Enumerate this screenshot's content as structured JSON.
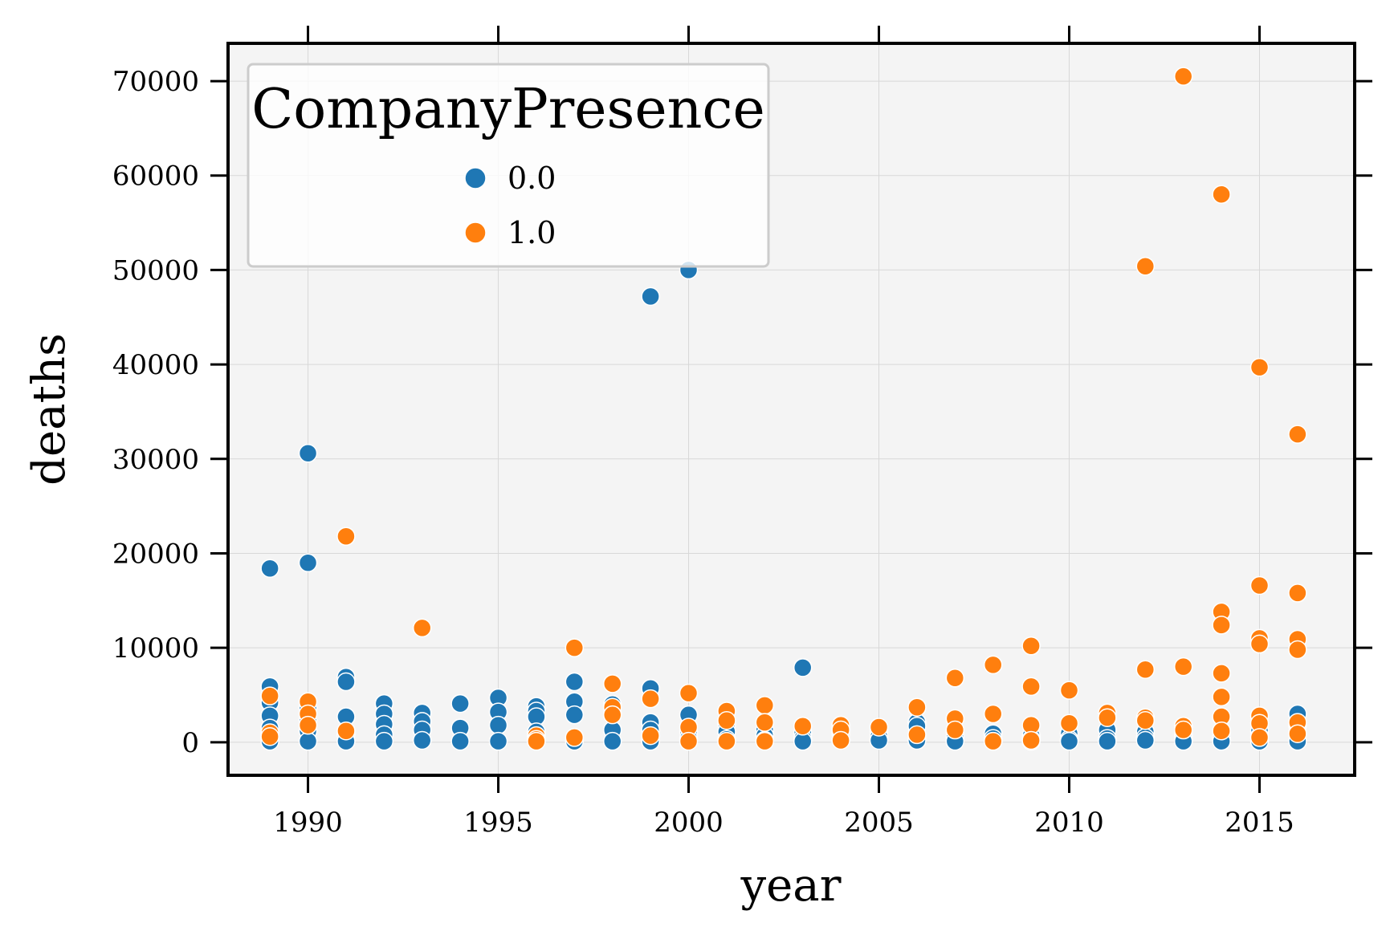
{
  "chart_data": {
    "type": "scatter",
    "title": "",
    "xlabel": "year",
    "ylabel": "deaths",
    "xlim": [
      1987.9,
      2017.5
    ],
    "ylim": [
      -3500,
      74000
    ],
    "xticks": [
      1990,
      1995,
      2000,
      2005,
      2010,
      2015
    ],
    "xtick_labels": [
      "1990",
      "1995",
      "2000",
      "2005",
      "2010",
      "2015"
    ],
    "yticks": [
      0,
      10000,
      20000,
      30000,
      40000,
      50000,
      60000,
      70000
    ],
    "ytick_labels": [
      "0",
      "10000",
      "20000",
      "30000",
      "40000",
      "50000",
      "60000",
      "70000"
    ],
    "grid": true,
    "legend": {
      "title": "CompanyPresence",
      "placement": "top-left"
    },
    "series": [
      {
        "name": "0.0",
        "color": "#1f77b4",
        "points": [
          [
            1989,
            18400
          ],
          [
            1989,
            5900
          ],
          [
            1989,
            4200
          ],
          [
            1989,
            2800
          ],
          [
            1989,
            1500
          ],
          [
            1989,
            100
          ],
          [
            1990,
            30600
          ],
          [
            1990,
            19000
          ],
          [
            1990,
            3600
          ],
          [
            1990,
            2300
          ],
          [
            1990,
            1200
          ],
          [
            1990,
            100
          ],
          [
            1991,
            6900
          ],
          [
            1991,
            6400
          ],
          [
            1991,
            2700
          ],
          [
            1991,
            800
          ],
          [
            1991,
            100
          ],
          [
            1992,
            4100
          ],
          [
            1992,
            3000
          ],
          [
            1992,
            1900
          ],
          [
            1992,
            800
          ],
          [
            1992,
            100
          ],
          [
            1993,
            3100
          ],
          [
            1993,
            2200
          ],
          [
            1993,
            1300
          ],
          [
            1993,
            200
          ],
          [
            1994,
            4100
          ],
          [
            1994,
            1500
          ],
          [
            1994,
            100
          ],
          [
            1995,
            4700
          ],
          [
            1995,
            3200
          ],
          [
            1995,
            1800
          ],
          [
            1995,
            100
          ],
          [
            1996,
            3800
          ],
          [
            1996,
            3300
          ],
          [
            1996,
            2700
          ],
          [
            1996,
            1100
          ],
          [
            1997,
            6400
          ],
          [
            1997,
            4300
          ],
          [
            1997,
            2900
          ],
          [
            1997,
            100
          ],
          [
            1998,
            4000
          ],
          [
            1998,
            3000
          ],
          [
            1998,
            1300
          ],
          [
            1998,
            100
          ],
          [
            1999,
            47200
          ],
          [
            1999,
            5700
          ],
          [
            1999,
            2100
          ],
          [
            1999,
            1300
          ],
          [
            1999,
            100
          ],
          [
            2000,
            50000
          ],
          [
            2000,
            2900
          ],
          [
            2000,
            1100
          ],
          [
            2000,
            400
          ],
          [
            2001,
            1900
          ],
          [
            2001,
            1100
          ],
          [
            2001,
            300
          ],
          [
            2002,
            1300
          ],
          [
            2002,
            700
          ],
          [
            2002,
            200
          ],
          [
            2003,
            7900
          ],
          [
            2003,
            1000
          ],
          [
            2003,
            400
          ],
          [
            2003,
            100
          ],
          [
            2004,
            1400
          ],
          [
            2004,
            900
          ],
          [
            2004,
            200
          ],
          [
            2005,
            1200
          ],
          [
            2005,
            600
          ],
          [
            2005,
            200
          ],
          [
            2006,
            2100
          ],
          [
            2006,
            1700
          ],
          [
            2006,
            700
          ],
          [
            2006,
            200
          ],
          [
            2007,
            1000
          ],
          [
            2007,
            500
          ],
          [
            2007,
            100
          ],
          [
            2008,
            900
          ],
          [
            2008,
            400
          ],
          [
            2008,
            100
          ],
          [
            2009,
            700
          ],
          [
            2009,
            300
          ],
          [
            2009,
            100
          ],
          [
            2010,
            900
          ],
          [
            2010,
            300
          ],
          [
            2010,
            100
          ],
          [
            2011,
            1300
          ],
          [
            2011,
            400
          ],
          [
            2011,
            100
          ],
          [
            2012,
            1100
          ],
          [
            2012,
            500
          ],
          [
            2012,
            200
          ],
          [
            2013,
            800
          ],
          [
            2013,
            400
          ],
          [
            2013,
            100
          ],
          [
            2014,
            1100
          ],
          [
            2014,
            500
          ],
          [
            2014,
            100
          ],
          [
            2015,
            1200
          ],
          [
            2015,
            600
          ],
          [
            2015,
            100
          ],
          [
            2016,
            3000
          ],
          [
            2016,
            1800
          ],
          [
            2016,
            1000
          ],
          [
            2016,
            100
          ]
        ]
      },
      {
        "name": "1.0",
        "color": "#ff7f0e",
        "points": [
          [
            1989,
            4900
          ],
          [
            1989,
            1000
          ],
          [
            1989,
            600
          ],
          [
            1990,
            4300
          ],
          [
            1990,
            3000
          ],
          [
            1990,
            1800
          ],
          [
            1991,
            21800
          ],
          [
            1991,
            1200
          ],
          [
            1993,
            12100
          ],
          [
            1996,
            700
          ],
          [
            1996,
            300
          ],
          [
            1996,
            100
          ],
          [
            1997,
            10000
          ],
          [
            1997,
            500
          ],
          [
            1998,
            6200
          ],
          [
            1998,
            3700
          ],
          [
            1998,
            2900
          ],
          [
            1999,
            4600
          ],
          [
            1999,
            700
          ],
          [
            2000,
            5200
          ],
          [
            2000,
            1600
          ],
          [
            2000,
            100
          ],
          [
            2001,
            3300
          ],
          [
            2001,
            2300
          ],
          [
            2001,
            100
          ],
          [
            2002,
            3900
          ],
          [
            2002,
            2100
          ],
          [
            2002,
            100
          ],
          [
            2003,
            1700
          ],
          [
            2004,
            1800
          ],
          [
            2004,
            1300
          ],
          [
            2004,
            200
          ],
          [
            2005,
            1600
          ],
          [
            2006,
            3700
          ],
          [
            2006,
            800
          ],
          [
            2007,
            6800
          ],
          [
            2007,
            2500
          ],
          [
            2007,
            1300
          ],
          [
            2008,
            8200
          ],
          [
            2008,
            3000
          ],
          [
            2008,
            100
          ],
          [
            2009,
            10200
          ],
          [
            2009,
            5900
          ],
          [
            2009,
            1800
          ],
          [
            2009,
            200
          ],
          [
            2010,
            5500
          ],
          [
            2010,
            2000
          ],
          [
            2011,
            3100
          ],
          [
            2011,
            2600
          ],
          [
            2012,
            50400
          ],
          [
            2012,
            7700
          ],
          [
            2012,
            2600
          ],
          [
            2012,
            2300
          ],
          [
            2013,
            70500
          ],
          [
            2013,
            8000
          ],
          [
            2013,
            1700
          ],
          [
            2013,
            1300
          ],
          [
            2014,
            58000
          ],
          [
            2014,
            13800
          ],
          [
            2014,
            12400
          ],
          [
            2014,
            7300
          ],
          [
            2014,
            4800
          ],
          [
            2014,
            2700
          ],
          [
            2014,
            1200
          ],
          [
            2015,
            39700
          ],
          [
            2015,
            16600
          ],
          [
            2015,
            11000
          ],
          [
            2015,
            10400
          ],
          [
            2015,
            2800
          ],
          [
            2015,
            2000
          ],
          [
            2015,
            500
          ],
          [
            2016,
            32600
          ],
          [
            2016,
            15800
          ],
          [
            2016,
            10900
          ],
          [
            2016,
            9800
          ],
          [
            2016,
            2100
          ],
          [
            2016,
            900
          ]
        ]
      }
    ]
  }
}
